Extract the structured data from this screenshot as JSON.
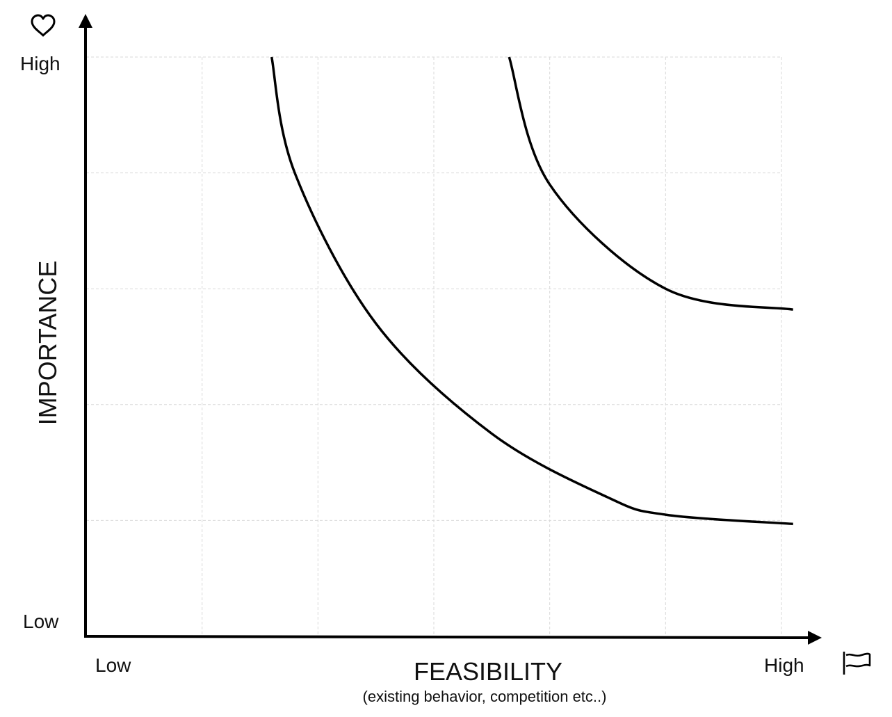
{
  "chart_data": {
    "type": "line",
    "x_axis": {
      "title": "FEASIBILITY",
      "subtitle": "(existing behavior, competition etc..)",
      "low_label": "Low",
      "high_label": "High",
      "icon": "flag-icon",
      "range": [
        0,
        6
      ]
    },
    "y_axis": {
      "title": "IMPORTANCE",
      "low_label": "Low",
      "high_label": "High",
      "icon": "heart-icon",
      "range": [
        0,
        5
      ]
    },
    "grid": true,
    "series": [
      {
        "points": [
          [
            1.6,
            5.0
          ],
          [
            1.8,
            4.0
          ],
          [
            2.5,
            2.7
          ],
          [
            3.5,
            1.75
          ],
          [
            4.5,
            1.2
          ],
          [
            5.0,
            1.05
          ],
          [
            6.1,
            0.97
          ]
        ]
      },
      {
        "points": [
          [
            3.65,
            5.0
          ],
          [
            4.0,
            3.9
          ],
          [
            5.0,
            3.0
          ],
          [
            6.1,
            2.82
          ]
        ]
      }
    ],
    "colors": {
      "axis": "#000000",
      "grid": "#d9d9d9",
      "curve": "#000000"
    }
  }
}
